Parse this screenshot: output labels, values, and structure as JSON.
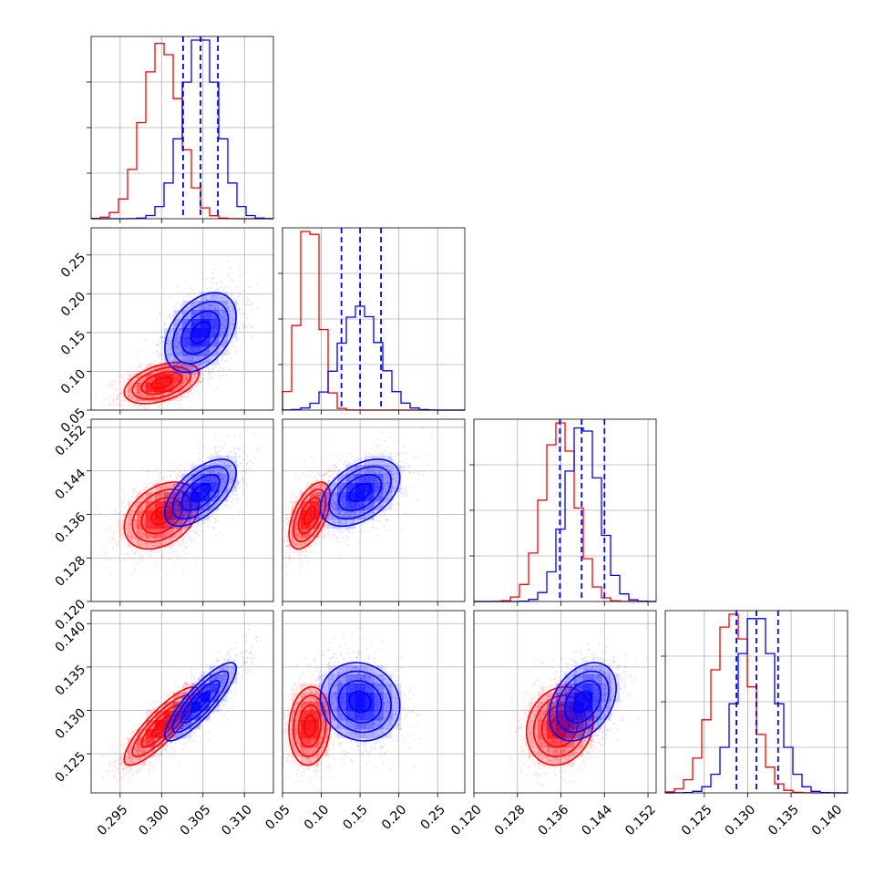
{
  "chart_data": {
    "type": "corner",
    "title": "",
    "params": [
      {
        "range": [
          0.2915,
          0.3135
        ],
        "ticks": [
          0.295,
          0.3,
          0.305,
          0.31
        ],
        "tick_labels": [
          "0.295",
          "0.300",
          "0.305",
          "0.310"
        ]
      },
      {
        "range": [
          0.05,
          0.285
        ],
        "ticks": [
          0.05,
          0.1,
          0.15,
          0.2,
          0.25
        ],
        "tick_labels": [
          "0.05",
          "0.10",
          "0.15",
          "0.20",
          "0.25"
        ]
      },
      {
        "range": [
          0.12,
          0.1535
        ],
        "ticks": [
          0.12,
          0.128,
          0.136,
          0.144,
          0.152
        ],
        "tick_labels": [
          "0.120",
          "0.128",
          "0.136",
          "0.144",
          "0.152"
        ]
      },
      {
        "range": [
          0.1205,
          0.1415
        ],
        "ticks": [
          0.125,
          0.13,
          0.135,
          0.14
        ],
        "tick_labels": [
          "0.125",
          "0.130",
          "0.135",
          "0.140"
        ]
      }
    ],
    "series": [
      {
        "color": "#ff0000",
        "mean": [
          0.3,
          0.085,
          0.1358,
          0.1282
        ],
        "std": [
          0.0022,
          0.013,
          0.003,
          0.0022
        ],
        "corr": [
          [
            1,
            0.45,
            0.35,
            0.85
          ],
          [
            0.45,
            1,
            0.55,
            0.1
          ],
          [
            0.35,
            0.55,
            1,
            0.15
          ],
          [
            0.85,
            0.1,
            0.15,
            1
          ]
        ],
        "show_quantiles": false
      },
      {
        "color": "#0000ff",
        "mean": [
          0.3047,
          0.15,
          0.14,
          0.131
        ],
        "std": [
          0.0021,
          0.025,
          0.003,
          0.0022
        ],
        "corr": [
          [
            1,
            0.4,
            0.6,
            0.85
          ],
          [
            0.4,
            1,
            0.45,
            -0.1
          ],
          [
            0.6,
            0.45,
            1,
            0.35
          ],
          [
            0.85,
            -0.1,
            0.35,
            1
          ]
        ],
        "show_quantiles": true,
        "quantiles": [
          [
            0.3026,
            0.3047,
            0.3068
          ],
          [
            0.126,
            0.15,
            0.177
          ],
          [
            0.1358,
            0.1398,
            0.144
          ],
          [
            0.1287,
            0.131,
            0.1335
          ]
        ]
      }
    ],
    "grid": true,
    "legend": "none"
  }
}
